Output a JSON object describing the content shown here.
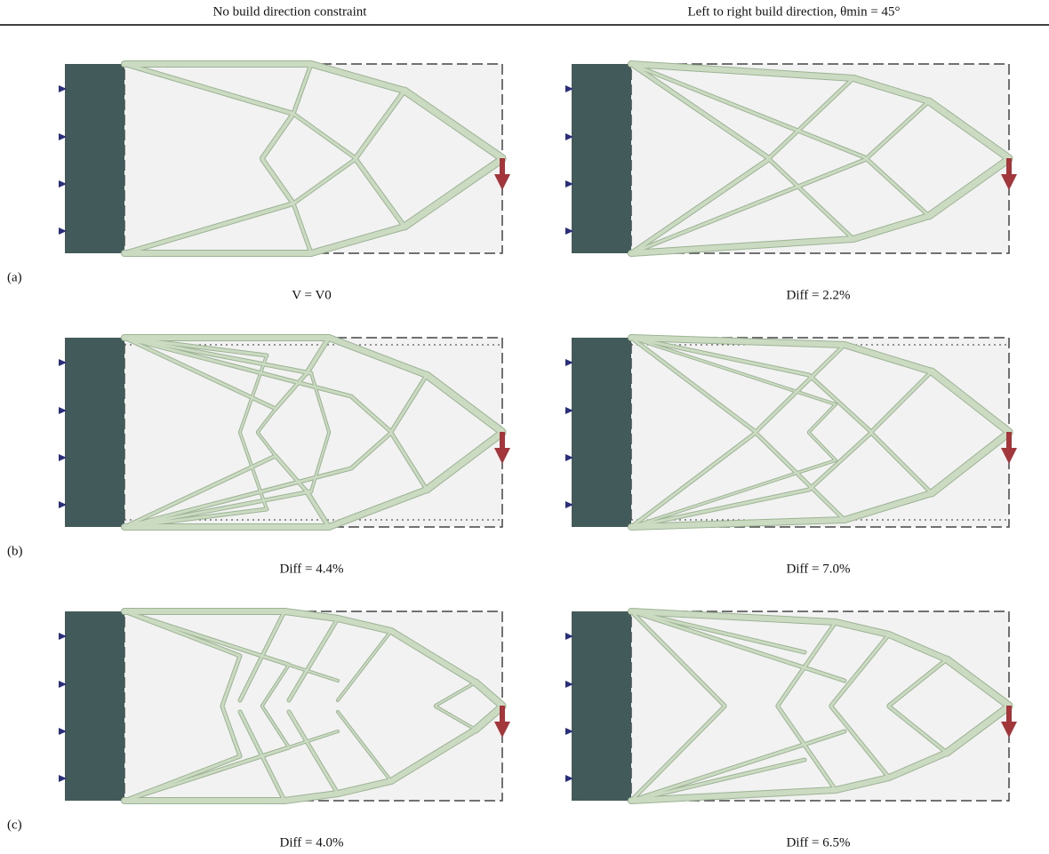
{
  "header": {
    "left": "No build direction constraint",
    "right": "Left to right build direction, θmin = 45°"
  },
  "rows": [
    {
      "label": "(a)",
      "captions": [
        "V = V0",
        "Diff = 2.2%"
      ]
    },
    {
      "label": "(b)",
      "captions": [
        "Diff = 4.4%",
        "Diff = 7.0%"
      ]
    },
    {
      "label": "(c)",
      "captions": [
        "Diff = 4.0%",
        "Diff = 6.5%"
      ]
    }
  ]
}
